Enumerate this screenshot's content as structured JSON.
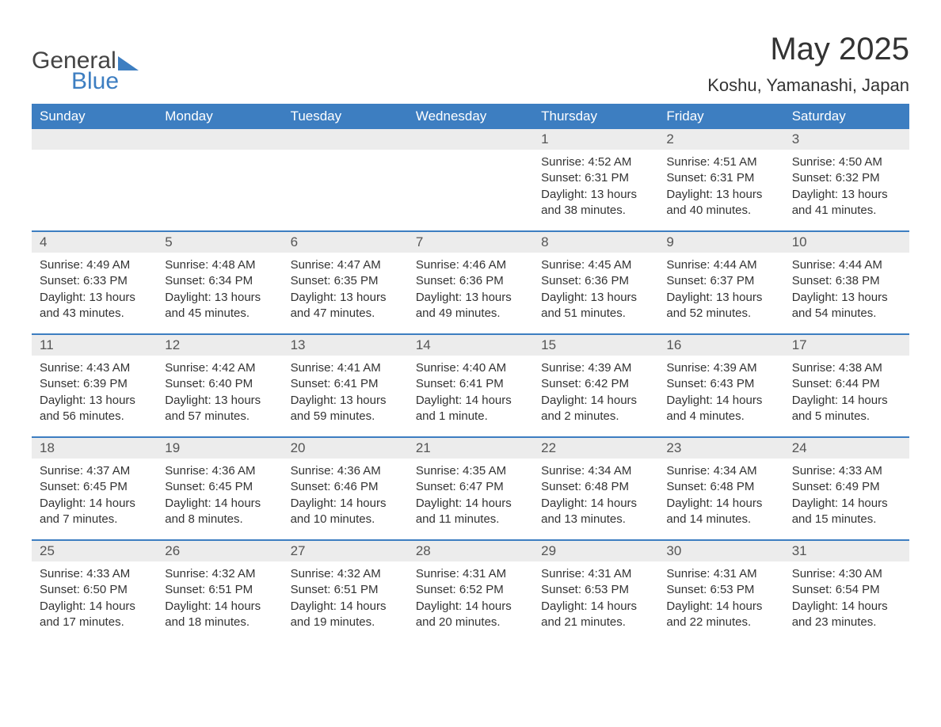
{
  "logo": {
    "word1": "General",
    "word2": "Blue"
  },
  "title": "May 2025",
  "subtitle": "Koshu, Yamanashi, Japan",
  "colors": {
    "accent": "#3d7ec1",
    "header_text": "#ffffff",
    "daynum_bg": "#ececec",
    "body_text": "#333333",
    "page_bg": "#ffffff"
  },
  "daynames": [
    "Sunday",
    "Monday",
    "Tuesday",
    "Wednesday",
    "Thursday",
    "Friday",
    "Saturday"
  ],
  "weeks": [
    [
      null,
      null,
      null,
      null,
      {
        "n": "1",
        "sr": "Sunrise: 4:52 AM",
        "ss": "Sunset: 6:31 PM",
        "d1": "Daylight: 13 hours",
        "d2": "and 38 minutes."
      },
      {
        "n": "2",
        "sr": "Sunrise: 4:51 AM",
        "ss": "Sunset: 6:31 PM",
        "d1": "Daylight: 13 hours",
        "d2": "and 40 minutes."
      },
      {
        "n": "3",
        "sr": "Sunrise: 4:50 AM",
        "ss": "Sunset: 6:32 PM",
        "d1": "Daylight: 13 hours",
        "d2": "and 41 minutes."
      }
    ],
    [
      {
        "n": "4",
        "sr": "Sunrise: 4:49 AM",
        "ss": "Sunset: 6:33 PM",
        "d1": "Daylight: 13 hours",
        "d2": "and 43 minutes."
      },
      {
        "n": "5",
        "sr": "Sunrise: 4:48 AM",
        "ss": "Sunset: 6:34 PM",
        "d1": "Daylight: 13 hours",
        "d2": "and 45 minutes."
      },
      {
        "n": "6",
        "sr": "Sunrise: 4:47 AM",
        "ss": "Sunset: 6:35 PM",
        "d1": "Daylight: 13 hours",
        "d2": "and 47 minutes."
      },
      {
        "n": "7",
        "sr": "Sunrise: 4:46 AM",
        "ss": "Sunset: 6:36 PM",
        "d1": "Daylight: 13 hours",
        "d2": "and 49 minutes."
      },
      {
        "n": "8",
        "sr": "Sunrise: 4:45 AM",
        "ss": "Sunset: 6:36 PM",
        "d1": "Daylight: 13 hours",
        "d2": "and 51 minutes."
      },
      {
        "n": "9",
        "sr": "Sunrise: 4:44 AM",
        "ss": "Sunset: 6:37 PM",
        "d1": "Daylight: 13 hours",
        "d2": "and 52 minutes."
      },
      {
        "n": "10",
        "sr": "Sunrise: 4:44 AM",
        "ss": "Sunset: 6:38 PM",
        "d1": "Daylight: 13 hours",
        "d2": "and 54 minutes."
      }
    ],
    [
      {
        "n": "11",
        "sr": "Sunrise: 4:43 AM",
        "ss": "Sunset: 6:39 PM",
        "d1": "Daylight: 13 hours",
        "d2": "and 56 minutes."
      },
      {
        "n": "12",
        "sr": "Sunrise: 4:42 AM",
        "ss": "Sunset: 6:40 PM",
        "d1": "Daylight: 13 hours",
        "d2": "and 57 minutes."
      },
      {
        "n": "13",
        "sr": "Sunrise: 4:41 AM",
        "ss": "Sunset: 6:41 PM",
        "d1": "Daylight: 13 hours",
        "d2": "and 59 minutes."
      },
      {
        "n": "14",
        "sr": "Sunrise: 4:40 AM",
        "ss": "Sunset: 6:41 PM",
        "d1": "Daylight: 14 hours",
        "d2": "and 1 minute."
      },
      {
        "n": "15",
        "sr": "Sunrise: 4:39 AM",
        "ss": "Sunset: 6:42 PM",
        "d1": "Daylight: 14 hours",
        "d2": "and 2 minutes."
      },
      {
        "n": "16",
        "sr": "Sunrise: 4:39 AM",
        "ss": "Sunset: 6:43 PM",
        "d1": "Daylight: 14 hours",
        "d2": "and 4 minutes."
      },
      {
        "n": "17",
        "sr": "Sunrise: 4:38 AM",
        "ss": "Sunset: 6:44 PM",
        "d1": "Daylight: 14 hours",
        "d2": "and 5 minutes."
      }
    ],
    [
      {
        "n": "18",
        "sr": "Sunrise: 4:37 AM",
        "ss": "Sunset: 6:45 PM",
        "d1": "Daylight: 14 hours",
        "d2": "and 7 minutes."
      },
      {
        "n": "19",
        "sr": "Sunrise: 4:36 AM",
        "ss": "Sunset: 6:45 PM",
        "d1": "Daylight: 14 hours",
        "d2": "and 8 minutes."
      },
      {
        "n": "20",
        "sr": "Sunrise: 4:36 AM",
        "ss": "Sunset: 6:46 PM",
        "d1": "Daylight: 14 hours",
        "d2": "and 10 minutes."
      },
      {
        "n": "21",
        "sr": "Sunrise: 4:35 AM",
        "ss": "Sunset: 6:47 PM",
        "d1": "Daylight: 14 hours",
        "d2": "and 11 minutes."
      },
      {
        "n": "22",
        "sr": "Sunrise: 4:34 AM",
        "ss": "Sunset: 6:48 PM",
        "d1": "Daylight: 14 hours",
        "d2": "and 13 minutes."
      },
      {
        "n": "23",
        "sr": "Sunrise: 4:34 AM",
        "ss": "Sunset: 6:48 PM",
        "d1": "Daylight: 14 hours",
        "d2": "and 14 minutes."
      },
      {
        "n": "24",
        "sr": "Sunrise: 4:33 AM",
        "ss": "Sunset: 6:49 PM",
        "d1": "Daylight: 14 hours",
        "d2": "and 15 minutes."
      }
    ],
    [
      {
        "n": "25",
        "sr": "Sunrise: 4:33 AM",
        "ss": "Sunset: 6:50 PM",
        "d1": "Daylight: 14 hours",
        "d2": "and 17 minutes."
      },
      {
        "n": "26",
        "sr": "Sunrise: 4:32 AM",
        "ss": "Sunset: 6:51 PM",
        "d1": "Daylight: 14 hours",
        "d2": "and 18 minutes."
      },
      {
        "n": "27",
        "sr": "Sunrise: 4:32 AM",
        "ss": "Sunset: 6:51 PM",
        "d1": "Daylight: 14 hours",
        "d2": "and 19 minutes."
      },
      {
        "n": "28",
        "sr": "Sunrise: 4:31 AM",
        "ss": "Sunset: 6:52 PM",
        "d1": "Daylight: 14 hours",
        "d2": "and 20 minutes."
      },
      {
        "n": "29",
        "sr": "Sunrise: 4:31 AM",
        "ss": "Sunset: 6:53 PM",
        "d1": "Daylight: 14 hours",
        "d2": "and 21 minutes."
      },
      {
        "n": "30",
        "sr": "Sunrise: 4:31 AM",
        "ss": "Sunset: 6:53 PM",
        "d1": "Daylight: 14 hours",
        "d2": "and 22 minutes."
      },
      {
        "n": "31",
        "sr": "Sunrise: 4:30 AM",
        "ss": "Sunset: 6:54 PM",
        "d1": "Daylight: 14 hours",
        "d2": "and 23 minutes."
      }
    ]
  ]
}
